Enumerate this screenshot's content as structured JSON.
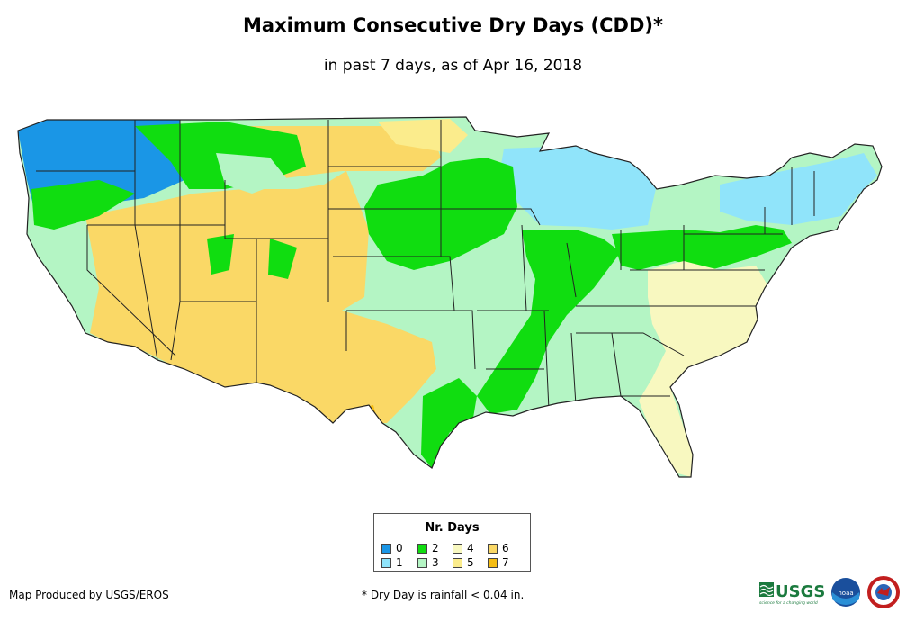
{
  "title": "Maximum Consecutive Dry Days (CDD)*",
  "subtitle": "in past 7 days, as of Apr 16, 2018",
  "legend": {
    "title": "Nr. Days",
    "items": [
      {
        "label": "0",
        "color": "#1a96e6"
      },
      {
        "label": "1",
        "color": "#90e4fa"
      },
      {
        "label": "2",
        "color": "#10dd10"
      },
      {
        "label": "3",
        "color": "#b4f5c4"
      },
      {
        "label": "4",
        "color": "#f8f8c0"
      },
      {
        "label": "5",
        "color": "#fbec8c"
      },
      {
        "label": "6",
        "color": "#fad866"
      },
      {
        "label": "7",
        "color": "#f5bd14"
      }
    ]
  },
  "credit": "Map Produced by USGS/EROS",
  "footnote": "* Dry Day is rainfall < 0.04 in.",
  "logos": {
    "usgs": "USGS",
    "usgs_tagline": "science for a changing world",
    "noaa": "noaa"
  }
}
